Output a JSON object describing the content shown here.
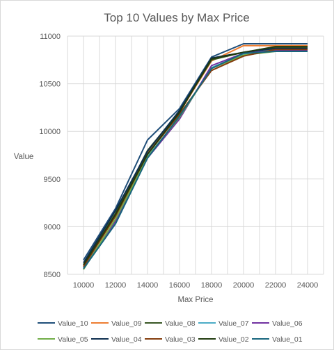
{
  "chart_data": {
    "type": "line",
    "title": "Top 10 Values by Max Price",
    "xlabel": "Max Price",
    "ylabel": "Value",
    "x": [
      10000,
      12000,
      14000,
      16000,
      18000,
      20000,
      22000,
      24000
    ],
    "xticks": [
      "10000",
      "12000",
      "14000",
      "16000",
      "18000",
      "20000",
      "22000",
      "24000"
    ],
    "yticks": [
      "8500",
      "9000",
      "9500",
      "10000",
      "10500",
      "11000"
    ],
    "xlim": [
      9000,
      25000
    ],
    "ylim": [
      8500,
      11000
    ],
    "grid": true,
    "legend_position": "bottom",
    "series": [
      {
        "name": "Value_10",
        "color": "#1f4e79",
        "values": [
          8650,
          9190,
          9910,
          10240,
          10780,
          10920,
          10920,
          10920
        ]
      },
      {
        "name": "Value_09",
        "color": "#ed7d31",
        "values": [
          8590,
          9120,
          9780,
          10200,
          10740,
          10900,
          10900,
          10900
        ]
      },
      {
        "name": "Value_08",
        "color": "#375623",
        "values": [
          8600,
          9140,
          9800,
          10210,
          10750,
          10830,
          10880,
          10880
        ]
      },
      {
        "name": "Value_07",
        "color": "#4bacc6",
        "values": [
          8570,
          9050,
          9740,
          10140,
          10670,
          10810,
          10860,
          10860
        ]
      },
      {
        "name": "Value_06",
        "color": "#7030a0",
        "values": [
          8560,
          9060,
          9720,
          10130,
          10690,
          10820,
          10850,
          10850
        ]
      },
      {
        "name": "Value_05",
        "color": "#70ad47",
        "values": [
          8550,
          9080,
          9730,
          10150,
          10660,
          10800,
          10840,
          10840
        ]
      },
      {
        "name": "Value_04",
        "color": "#0d2d4e",
        "values": [
          8620,
          9170,
          9790,
          10220,
          10770,
          10830,
          10870,
          10870
        ]
      },
      {
        "name": "Value_03",
        "color": "#843c0c",
        "values": [
          8580,
          9110,
          9760,
          10180,
          10640,
          10790,
          10860,
          10860
        ]
      },
      {
        "name": "Value_02",
        "color": "#203a0e",
        "values": [
          8600,
          9130,
          9760,
          10200,
          10760,
          10830,
          10890,
          10890
        ]
      },
      {
        "name": "Value_01",
        "color": "#17657d",
        "values": [
          8560,
          9030,
          9720,
          10160,
          10660,
          10820,
          10840,
          10840
        ]
      }
    ]
  }
}
